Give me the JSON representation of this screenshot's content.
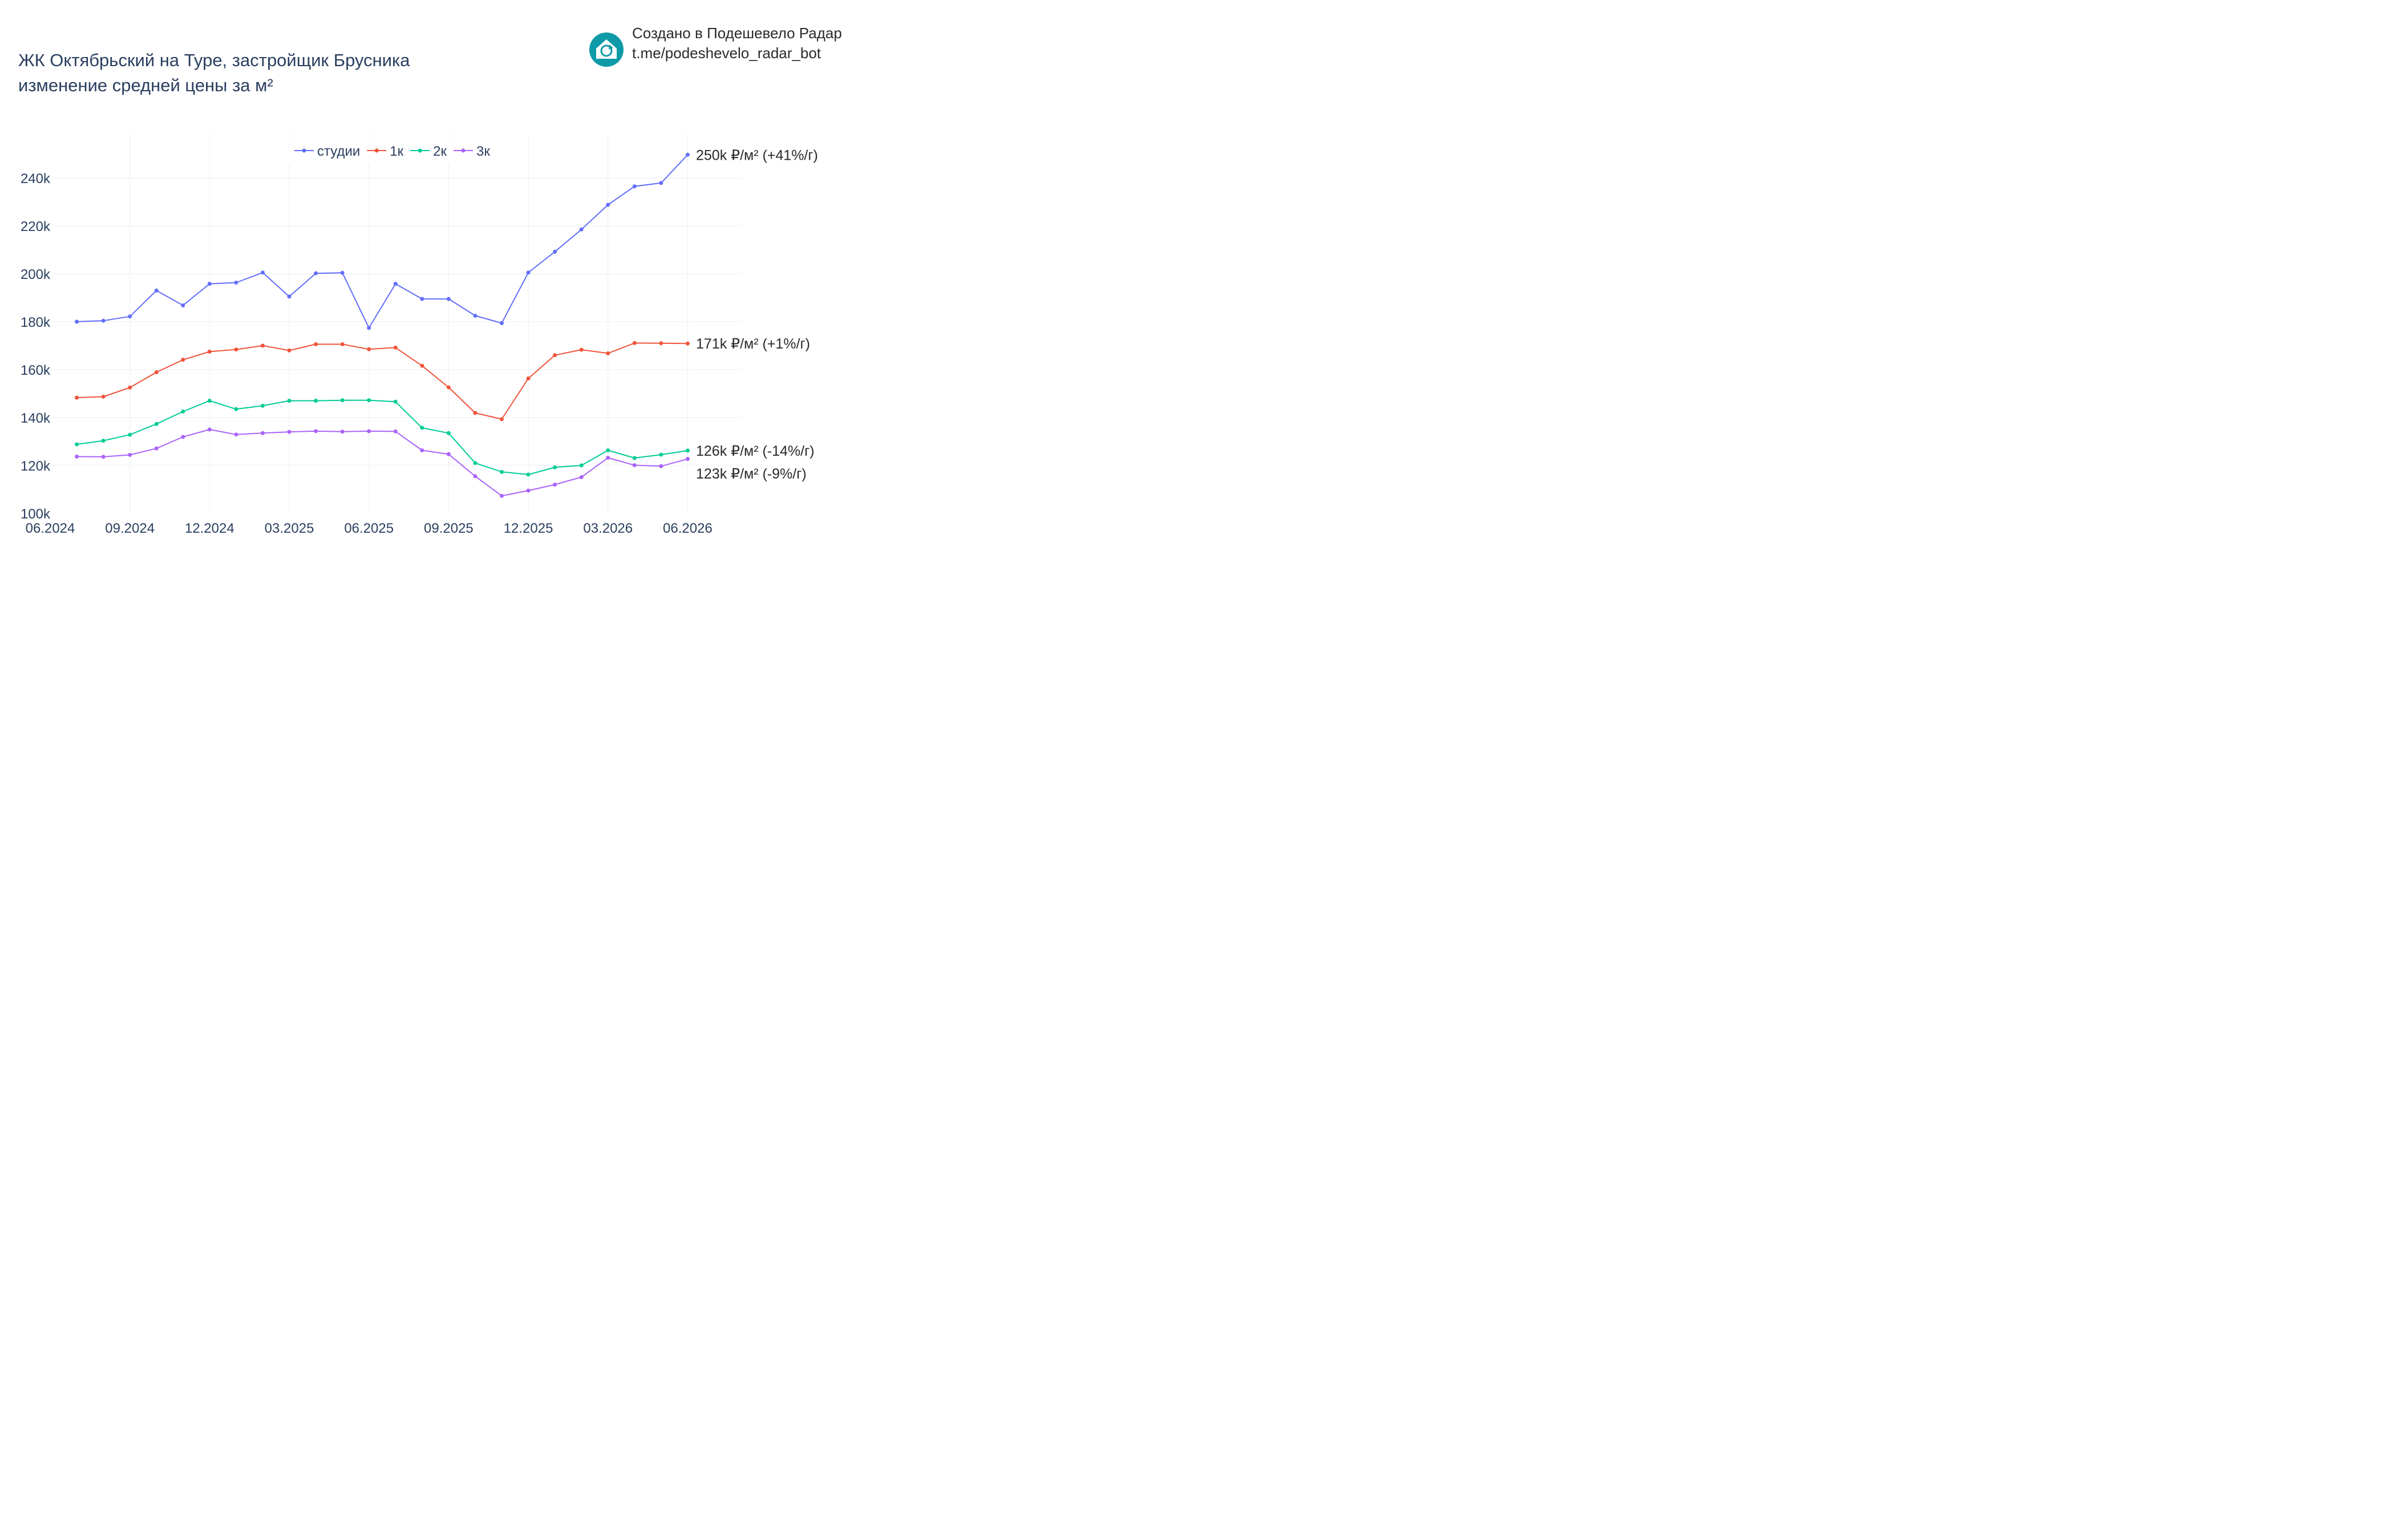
{
  "header": {
    "title_line1": "ЖК Октябрьский на Туре, застройщик Брусника",
    "title_line2": "изменение средней цены за м²"
  },
  "brand": {
    "line1": "Создано в Подешевело Радар",
    "line2": "t.me/podeshevelo_radar_bot",
    "logo_icon": "house-refresh-icon",
    "logo_color": "#0e9aa7"
  },
  "chart_data": {
    "type": "line",
    "x": [
      "07.2024",
      "08.2024",
      "09.2024",
      "10.2024",
      "11.2024",
      "12.2024",
      "01.2025",
      "02.2025",
      "03.2025",
      "04.2025",
      "05.2025",
      "06.2025",
      "07.2025",
      "08.2025",
      "09.2025",
      "10.2025",
      "11.2025",
      "12.2025",
      "01.2026",
      "02.2026",
      "03.2026",
      "04.2026",
      "05.2026",
      "06.2026"
    ],
    "x_ticks": [
      "06.2024",
      "09.2024",
      "12.2024",
      "03.2025",
      "06.2025",
      "09.2025",
      "12.2025",
      "03.2026",
      "06.2026"
    ],
    "x_range": [
      "06.2024",
      "07.2026"
    ],
    "y_ticks": [
      100000,
      120000,
      140000,
      160000,
      180000,
      200000,
      220000,
      240000
    ],
    "y_tick_labels": [
      "100k",
      "120k",
      "140k",
      "160k",
      "180k",
      "200k",
      "220k",
      "240k"
    ],
    "ylim": [
      100000,
      258000
    ],
    "grid": true,
    "legend_position": "top-center",
    "series": [
      {
        "name": "студии",
        "color": "#636efa",
        "values": [
          180000,
          180400,
          182200,
          193000,
          186800,
          195800,
          196300,
          200500,
          190500,
          200200,
          200400,
          177400,
          195800,
          189500,
          189500,
          182500,
          179400,
          200500,
          209200,
          218500,
          228800,
          236500,
          237900,
          249700
        ],
        "end_label": "250k ₽/м² (+41%/г)"
      },
      {
        "name": "1к",
        "color": "#ef553b",
        "values": [
          148300,
          148700,
          152500,
          158900,
          164100,
          167500,
          168400,
          170000,
          168000,
          170600,
          170600,
          168500,
          169200,
          161600,
          152600,
          141900,
          139300,
          156300,
          166000,
          168300,
          166800,
          171100,
          171000,
          170900
        ],
        "end_label": "171k ₽/м² (+1%/г)"
      },
      {
        "name": "2к",
        "color": "#00cc96",
        "values": [
          128800,
          130300,
          132800,
          137300,
          142500,
          147000,
          143500,
          144900,
          147000,
          147000,
          147200,
          147200,
          146600,
          135700,
          133500,
          121000,
          117300,
          116200,
          119200,
          120000,
          126300,
          123100,
          124500,
          126200
        ],
        "end_label": "126k ₽/м² (-14%/г)"
      },
      {
        "name": "3к",
        "color": "#ab63fa",
        "values": [
          123700,
          123600,
          124400,
          127100,
          131900,
          135000,
          132900,
          133500,
          134000,
          134300,
          134100,
          134300,
          134200,
          126300,
          124700,
          115500,
          107300,
          109500,
          112000,
          115100,
          123200,
          120100,
          119700,
          122700
        ],
        "end_label": "123k ₽/м² (-9%/г)"
      }
    ]
  }
}
